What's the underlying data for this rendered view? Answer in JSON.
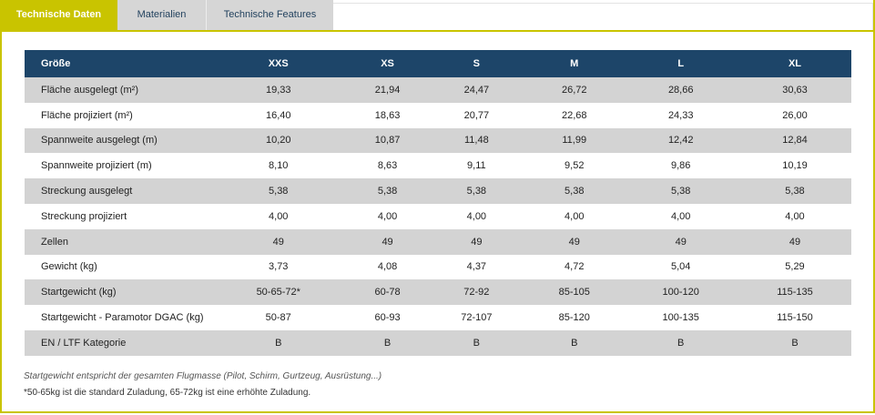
{
  "tabs": [
    {
      "label": "Technische Daten",
      "active": true
    },
    {
      "label": "Materialien",
      "active": false
    },
    {
      "label": "Technische Features",
      "active": false
    }
  ],
  "table": {
    "headers": [
      "Größe",
      "XXS",
      "XS",
      "S",
      "M",
      "L",
      "XL"
    ],
    "rows": [
      [
        "Fläche ausgelegt (m²)",
        "19,33",
        "21,94",
        "24,47",
        "26,72",
        "28,66",
        "30,63"
      ],
      [
        "Fläche projiziert (m²)",
        "16,40",
        "18,63",
        "20,77",
        "22,68",
        "24,33",
        "26,00"
      ],
      [
        "Spannweite ausgelegt (m)",
        "10,20",
        "10,87",
        "11,48",
        "11,99",
        "12,42",
        "12,84"
      ],
      [
        "Spannweite projiziert (m)",
        "8,10",
        "8,63",
        "9,11",
        "9,52",
        "9,86",
        "10,19"
      ],
      [
        "Streckung ausgelegt",
        "5,38",
        "5,38",
        "5,38",
        "5,38",
        "5,38",
        "5,38"
      ],
      [
        "Streckung projiziert",
        "4,00",
        "4,00",
        "4,00",
        "4,00",
        "4,00",
        "4,00"
      ],
      [
        "Zellen",
        "49",
        "49",
        "49",
        "49",
        "49",
        "49"
      ],
      [
        "Gewicht (kg)",
        "3,73",
        "4,08",
        "4,37",
        "4,72",
        "5,04",
        "5,29"
      ],
      [
        "Startgewicht (kg)",
        "50-65-72*",
        "60-78",
        "72-92",
        "85-105",
        "100-120",
        "115-135"
      ],
      [
        "Startgewicht - Paramotor DGAC (kg)",
        "50-87",
        "60-93",
        "72-107",
        "85-120",
        "100-135",
        "115-150"
      ],
      [
        "EN / LTF Kategorie",
        "B",
        "B",
        "B",
        "B",
        "B",
        "B"
      ]
    ]
  },
  "notes": {
    "line1": "Startgewicht entspricht der gesamten Flugmasse (Pilot, Schirm, Gurtzeug, Ausrüstung...)",
    "line2": "*50-65kg ist die standard Zuladung, 65-72kg ist eine erhöhte Zuladung."
  },
  "colors": {
    "accent": "#c9c400",
    "header_bg": "#1d4569",
    "row_odd": "#d3d3d3",
    "tab_inactive": "#d6d6d6"
  }
}
